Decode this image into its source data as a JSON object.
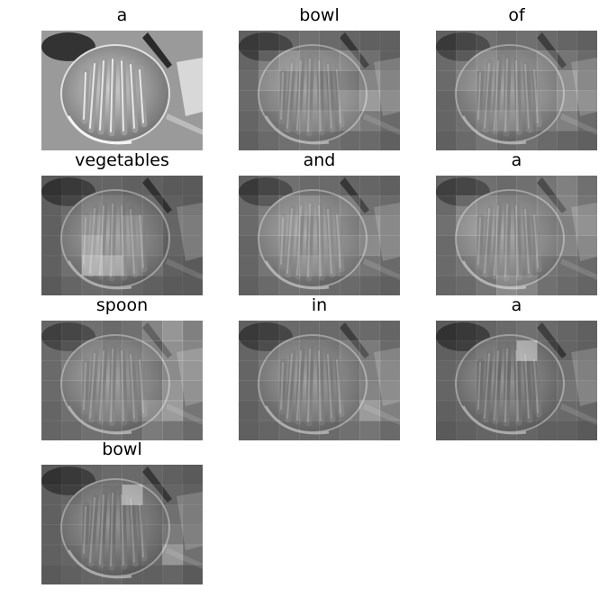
{
  "figure": {
    "caption_tokens": [
      "a",
      "bowl",
      "of",
      "vegetables",
      "and",
      "a",
      "spoon",
      "in",
      "a",
      "bowl"
    ]
  },
  "panels": [
    {
      "word": "a",
      "image": "grayscale-photo-bowl-of-carrots-original",
      "attention": []
    },
    {
      "word": "bowl",
      "image": "grayscale-photo-bowl-of-carrots-attention-overlay",
      "attention": [
        [
          0.2,
          0.25,
          0.3,
          0.35,
          0.3,
          0.25,
          0.2,
          0.2
        ],
        [
          0.25,
          0.5,
          0.6,
          0.45,
          0.5,
          0.55,
          0.35,
          0.2
        ],
        [
          0.3,
          0.55,
          0.4,
          0.35,
          0.3,
          0.4,
          0.55,
          0.3
        ],
        [
          0.3,
          0.45,
          0.35,
          0.4,
          0.35,
          0.6,
          0.75,
          0.4
        ],
        [
          0.25,
          0.35,
          0.4,
          0.5,
          0.45,
          0.55,
          0.45,
          0.3
        ],
        [
          0.2,
          0.3,
          0.35,
          0.4,
          0.35,
          0.3,
          0.3,
          0.2
        ]
      ]
    },
    {
      "word": "of",
      "image": "grayscale-photo-bowl-of-carrots-attention-overlay",
      "attention": [
        [
          0.2,
          0.3,
          0.35,
          0.3,
          0.35,
          0.3,
          0.25,
          0.2
        ],
        [
          0.3,
          0.45,
          0.5,
          0.4,
          0.45,
          0.55,
          0.4,
          0.3
        ],
        [
          0.3,
          0.5,
          0.4,
          0.35,
          0.35,
          0.5,
          0.65,
          0.35
        ],
        [
          0.25,
          0.4,
          0.35,
          0.4,
          0.4,
          0.55,
          0.7,
          0.45
        ],
        [
          0.25,
          0.35,
          0.45,
          0.5,
          0.4,
          0.45,
          0.5,
          0.3
        ],
        [
          0.2,
          0.3,
          0.4,
          0.3,
          0.35,
          0.3,
          0.25,
          0.2
        ]
      ]
    },
    {
      "word": "vegetables",
      "image": "grayscale-photo-bowl-of-carrots-attention-overlay",
      "attention": [
        [
          0.15,
          0.2,
          0.25,
          0.25,
          0.2,
          0.2,
          0.15,
          0.15
        ],
        [
          0.2,
          0.3,
          0.4,
          0.35,
          0.3,
          0.3,
          0.2,
          0.15
        ],
        [
          0.2,
          0.35,
          0.55,
          0.45,
          0.5,
          0.35,
          0.25,
          0.2
        ],
        [
          0.2,
          0.4,
          0.75,
          0.5,
          0.55,
          0.4,
          0.25,
          0.2
        ],
        [
          0.2,
          0.35,
          0.9,
          0.8,
          0.5,
          0.35,
          0.2,
          0.15
        ],
        [
          0.15,
          0.25,
          0.3,
          0.3,
          0.25,
          0.2,
          0.15,
          0.15
        ]
      ]
    },
    {
      "word": "and",
      "image": "grayscale-photo-bowl-of-carrots-attention-overlay",
      "attention": [
        [
          0.2,
          0.3,
          0.35,
          0.3,
          0.3,
          0.25,
          0.25,
          0.2
        ],
        [
          0.3,
          0.45,
          0.5,
          0.55,
          0.45,
          0.5,
          0.35,
          0.3
        ],
        [
          0.3,
          0.5,
          0.6,
          0.45,
          0.5,
          0.45,
          0.55,
          0.35
        ],
        [
          0.25,
          0.45,
          0.5,
          0.45,
          0.5,
          0.5,
          0.6,
          0.35
        ],
        [
          0.25,
          0.4,
          0.45,
          0.55,
          0.5,
          0.45,
          0.4,
          0.3
        ],
        [
          0.2,
          0.3,
          0.35,
          0.35,
          0.3,
          0.3,
          0.25,
          0.2
        ]
      ]
    },
    {
      "word": "a",
      "image": "grayscale-photo-bowl-of-carrots-attention-overlay",
      "attention": [
        [
          0.25,
          0.3,
          0.35,
          0.3,
          0.35,
          0.4,
          0.5,
          0.35
        ],
        [
          0.3,
          0.55,
          0.5,
          0.4,
          0.45,
          0.5,
          0.55,
          0.4
        ],
        [
          0.35,
          0.6,
          0.45,
          0.4,
          0.4,
          0.45,
          0.5,
          0.45
        ],
        [
          0.3,
          0.5,
          0.4,
          0.45,
          0.4,
          0.5,
          0.55,
          0.35
        ],
        [
          0.3,
          0.4,
          0.45,
          0.5,
          0.45,
          0.4,
          0.35,
          0.3
        ],
        [
          0.25,
          0.3,
          0.4,
          0.6,
          0.55,
          0.35,
          0.3,
          0.25
        ]
      ]
    },
    {
      "word": "spoon",
      "image": "grayscale-photo-bowl-of-carrots-attention-overlay",
      "attention": [
        [
          0.25,
          0.3,
          0.35,
          0.3,
          0.35,
          0.55,
          0.7,
          0.5
        ],
        [
          0.3,
          0.4,
          0.45,
          0.35,
          0.4,
          0.5,
          0.65,
          0.55
        ],
        [
          0.3,
          0.45,
          0.4,
          0.35,
          0.35,
          0.4,
          0.6,
          0.5
        ],
        [
          0.3,
          0.4,
          0.35,
          0.4,
          0.35,
          0.45,
          0.7,
          0.45
        ],
        [
          0.25,
          0.35,
          0.4,
          0.45,
          0.4,
          0.65,
          0.75,
          0.4
        ],
        [
          0.25,
          0.3,
          0.35,
          0.35,
          0.3,
          0.45,
          0.4,
          0.3
        ]
      ]
    },
    {
      "word": "in",
      "image": "grayscale-photo-bowl-of-carrots-attention-overlay",
      "attention": [
        [
          0.2,
          0.25,
          0.3,
          0.3,
          0.3,
          0.3,
          0.3,
          0.25
        ],
        [
          0.25,
          0.35,
          0.4,
          0.35,
          0.35,
          0.45,
          0.45,
          0.3
        ],
        [
          0.25,
          0.4,
          0.35,
          0.3,
          0.3,
          0.4,
          0.5,
          0.35
        ],
        [
          0.25,
          0.35,
          0.3,
          0.35,
          0.35,
          0.4,
          0.55,
          0.4
        ],
        [
          0.2,
          0.3,
          0.35,
          0.4,
          0.35,
          0.45,
          0.75,
          0.5
        ],
        [
          0.2,
          0.25,
          0.3,
          0.3,
          0.3,
          0.35,
          0.4,
          0.3
        ]
      ]
    },
    {
      "word": "a",
      "image": "grayscale-photo-bowl-of-carrots-attention-overlay",
      "attention": [
        [
          0.15,
          0.2,
          0.25,
          0.3,
          0.35,
          0.3,
          0.25,
          0.2
        ],
        [
          0.2,
          0.25,
          0.3,
          0.25,
          0.85,
          0.3,
          0.25,
          0.2
        ],
        [
          0.25,
          0.3,
          0.2,
          0.15,
          0.2,
          0.3,
          0.35,
          0.25
        ],
        [
          0.25,
          0.3,
          0.2,
          0.2,
          0.2,
          0.3,
          0.4,
          0.3
        ],
        [
          0.2,
          0.25,
          0.25,
          0.3,
          0.25,
          0.3,
          0.3,
          0.25
        ],
        [
          0.15,
          0.2,
          0.25,
          0.25,
          0.25,
          0.2,
          0.2,
          0.15
        ]
      ]
    },
    {
      "word": "bowl",
      "image": "grayscale-photo-bowl-of-carrots-attention-overlay",
      "attention": [
        [
          0.15,
          0.2,
          0.25,
          0.3,
          0.3,
          0.25,
          0.2,
          0.15
        ],
        [
          0.2,
          0.25,
          0.3,
          0.25,
          0.85,
          0.35,
          0.25,
          0.2
        ],
        [
          0.2,
          0.3,
          0.25,
          0.2,
          0.2,
          0.3,
          0.35,
          0.2
        ],
        [
          0.2,
          0.3,
          0.25,
          0.2,
          0.25,
          0.3,
          0.45,
          0.25
        ],
        [
          0.2,
          0.25,
          0.3,
          0.25,
          0.25,
          0.3,
          0.7,
          0.35
        ],
        [
          0.15,
          0.2,
          0.25,
          0.25,
          0.2,
          0.2,
          0.25,
          0.15
        ]
      ]
    }
  ]
}
